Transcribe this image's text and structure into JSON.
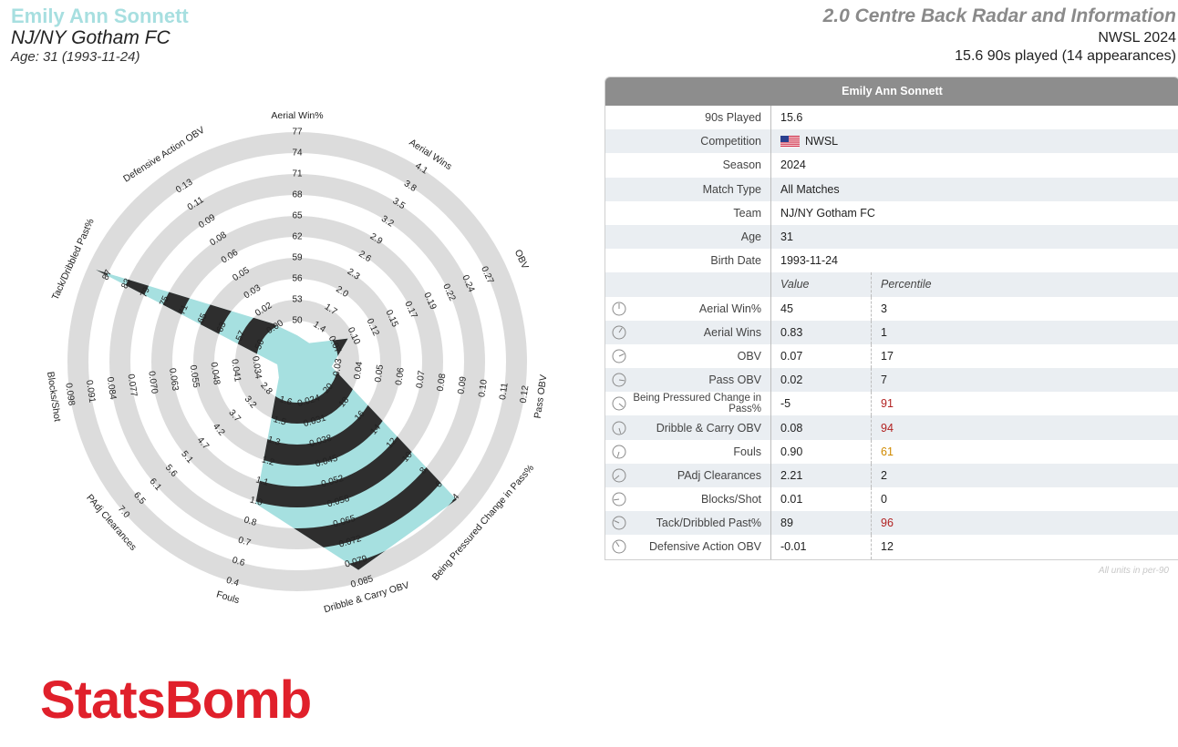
{
  "header": {
    "player_name": "Emily Ann Sonnett",
    "team": "NJ/NY Gotham FC",
    "age_line": "Age: 31 (1993-11-24)",
    "radar_title": "2.0 Centre Back Radar and Information",
    "competition_line": "NWSL 2024",
    "played_line": "15.6 90s played (14 appearances)"
  },
  "table": {
    "title": "Emily Ann Sonnett",
    "info_rows": [
      {
        "label": "90s Played",
        "value": "15.6"
      },
      {
        "label": "Competition",
        "value": "NWSL",
        "flag": "us-flag-icon"
      },
      {
        "label": "Season",
        "value": "2024"
      },
      {
        "label": "Match Type",
        "value": "All Matches"
      },
      {
        "label": "Team",
        "value": "NJ/NY Gotham FC"
      },
      {
        "label": "Age",
        "value": "31"
      },
      {
        "label": "Birth Date",
        "value": "1993-11-24"
      }
    ],
    "value_header": "Value",
    "percentile_header": "Percentile",
    "metric_rows": [
      {
        "label": "Aerial Win%",
        "value": "45",
        "percentile": "3",
        "pct_color": "#222222"
      },
      {
        "label": "Aerial Wins",
        "value": "0.83",
        "percentile": "1",
        "pct_color": "#222222"
      },
      {
        "label": "OBV",
        "value": "0.07",
        "percentile": "17",
        "pct_color": "#222222"
      },
      {
        "label": "Pass OBV",
        "value": "0.02",
        "percentile": "7",
        "pct_color": "#222222"
      },
      {
        "label": "Being Pressured Change in Pass%",
        "value": "-5",
        "percentile": "91",
        "pct_color": "#b22222"
      },
      {
        "label": "Dribble & Carry OBV",
        "value": "0.08",
        "percentile": "94",
        "pct_color": "#b22222"
      },
      {
        "label": "Fouls",
        "value": "0.90",
        "percentile": "61",
        "pct_color": "#d08a00"
      },
      {
        "label": "PAdj Clearances",
        "value": "2.21",
        "percentile": "2",
        "pct_color": "#222222"
      },
      {
        "label": "Blocks/Shot",
        "value": "0.01",
        "percentile": "0",
        "pct_color": "#222222"
      },
      {
        "label": "Tack/Dribbled Past%",
        "value": "89",
        "percentile": "96",
        "pct_color": "#b22222"
      },
      {
        "label": "Defensive Action OBV",
        "value": "-0.01",
        "percentile": "12",
        "pct_color": "#222222"
      }
    ],
    "footnote": "All units in per-90"
  },
  "logo_text": "StatsBomb",
  "colors": {
    "fill_teal": "#a6e0e0",
    "fill_dark": "#2e2e2e",
    "ring_grey": "#dcdcdc",
    "logo_red": "#e0202b"
  },
  "chart_data": {
    "type": "radar",
    "title": "2.0 Centre Back Radar and Information",
    "axes": [
      {
        "label": "Aerial Win%",
        "ticks": [
          "50",
          "53",
          "56",
          "59",
          "62",
          "65",
          "68",
          "71",
          "74",
          "77"
        ],
        "value": 45,
        "percentile": 3
      },
      {
        "label": "Aerial Wins",
        "ticks": [
          "1.4",
          "1.7",
          "2.0",
          "2.3",
          "2.6",
          "2.9",
          "3.2",
          "3.5",
          "3.8",
          "4.1"
        ],
        "value": 0.83,
        "percentile": 1
      },
      {
        "label": "OBV",
        "ticks": [
          "0.07",
          "0.10",
          "0.12",
          "0.15",
          "0.17",
          "0.19",
          "0.22",
          "0.24",
          "0.27"
        ],
        "value": 0.07,
        "percentile": 17
      },
      {
        "label": "Pass OBV",
        "ticks": [
          "0.03",
          "0.04",
          "0.05",
          "0.06",
          "0.07",
          "0.08",
          "0.09",
          "0.10",
          "0.11",
          "0.12"
        ],
        "value": 0.02,
        "percentile": 7
      },
      {
        "label": "Being Pressured Change in Pass%",
        "ticks": [
          "20",
          "18",
          "16",
          "14",
          "12",
          "10",
          "8",
          "6",
          "-4"
        ],
        "value": -5,
        "percentile": 91
      },
      {
        "label": "Dribble & Carry OBV",
        "ticks": [
          "0.024",
          "0.031",
          "0.038",
          "0.045",
          "0.052",
          "0.058",
          "0.065",
          "0.072",
          "0.079",
          "0.085"
        ],
        "value": 0.08,
        "percentile": 94
      },
      {
        "label": "Fouls",
        "ticks": [
          "1.6",
          "1.5",
          "1.3",
          "1.2",
          "1.1",
          "1.0",
          "0.8",
          "0.7",
          "0.6",
          "0.4"
        ],
        "value": 0.9,
        "percentile": 61
      },
      {
        "label": "PAdj Clearances",
        "ticks": [
          "2.8",
          "3.2",
          "3.7",
          "4.2",
          "4.7",
          "5.1",
          "5.6",
          "6.1",
          "6.5",
          "7.0"
        ],
        "value": 2.21,
        "percentile": 2
      },
      {
        "label": "Blocks/Shot",
        "ticks": [
          "0.034",
          "0.041",
          "0.048",
          "0.055",
          "0.063",
          "0.070",
          "0.077",
          "0.084",
          "0.091",
          "0.098"
        ],
        "value": 0.01,
        "percentile": 0
      },
      {
        "label": "Tack/Dribbled Past%",
        "ticks": [
          "50",
          "57",
          "63",
          "65",
          "71",
          "75",
          "79",
          "83",
          "87"
        ],
        "value": 89,
        "percentile": 96
      },
      {
        "label": "Defensive Action OBV",
        "ticks": [
          "0.00",
          "0.02",
          "0.03",
          "0.05",
          "0.06",
          "0.08",
          "0.09",
          "0.11",
          "0.13"
        ],
        "value": -0.01,
        "percentile": 12
      }
    ]
  }
}
